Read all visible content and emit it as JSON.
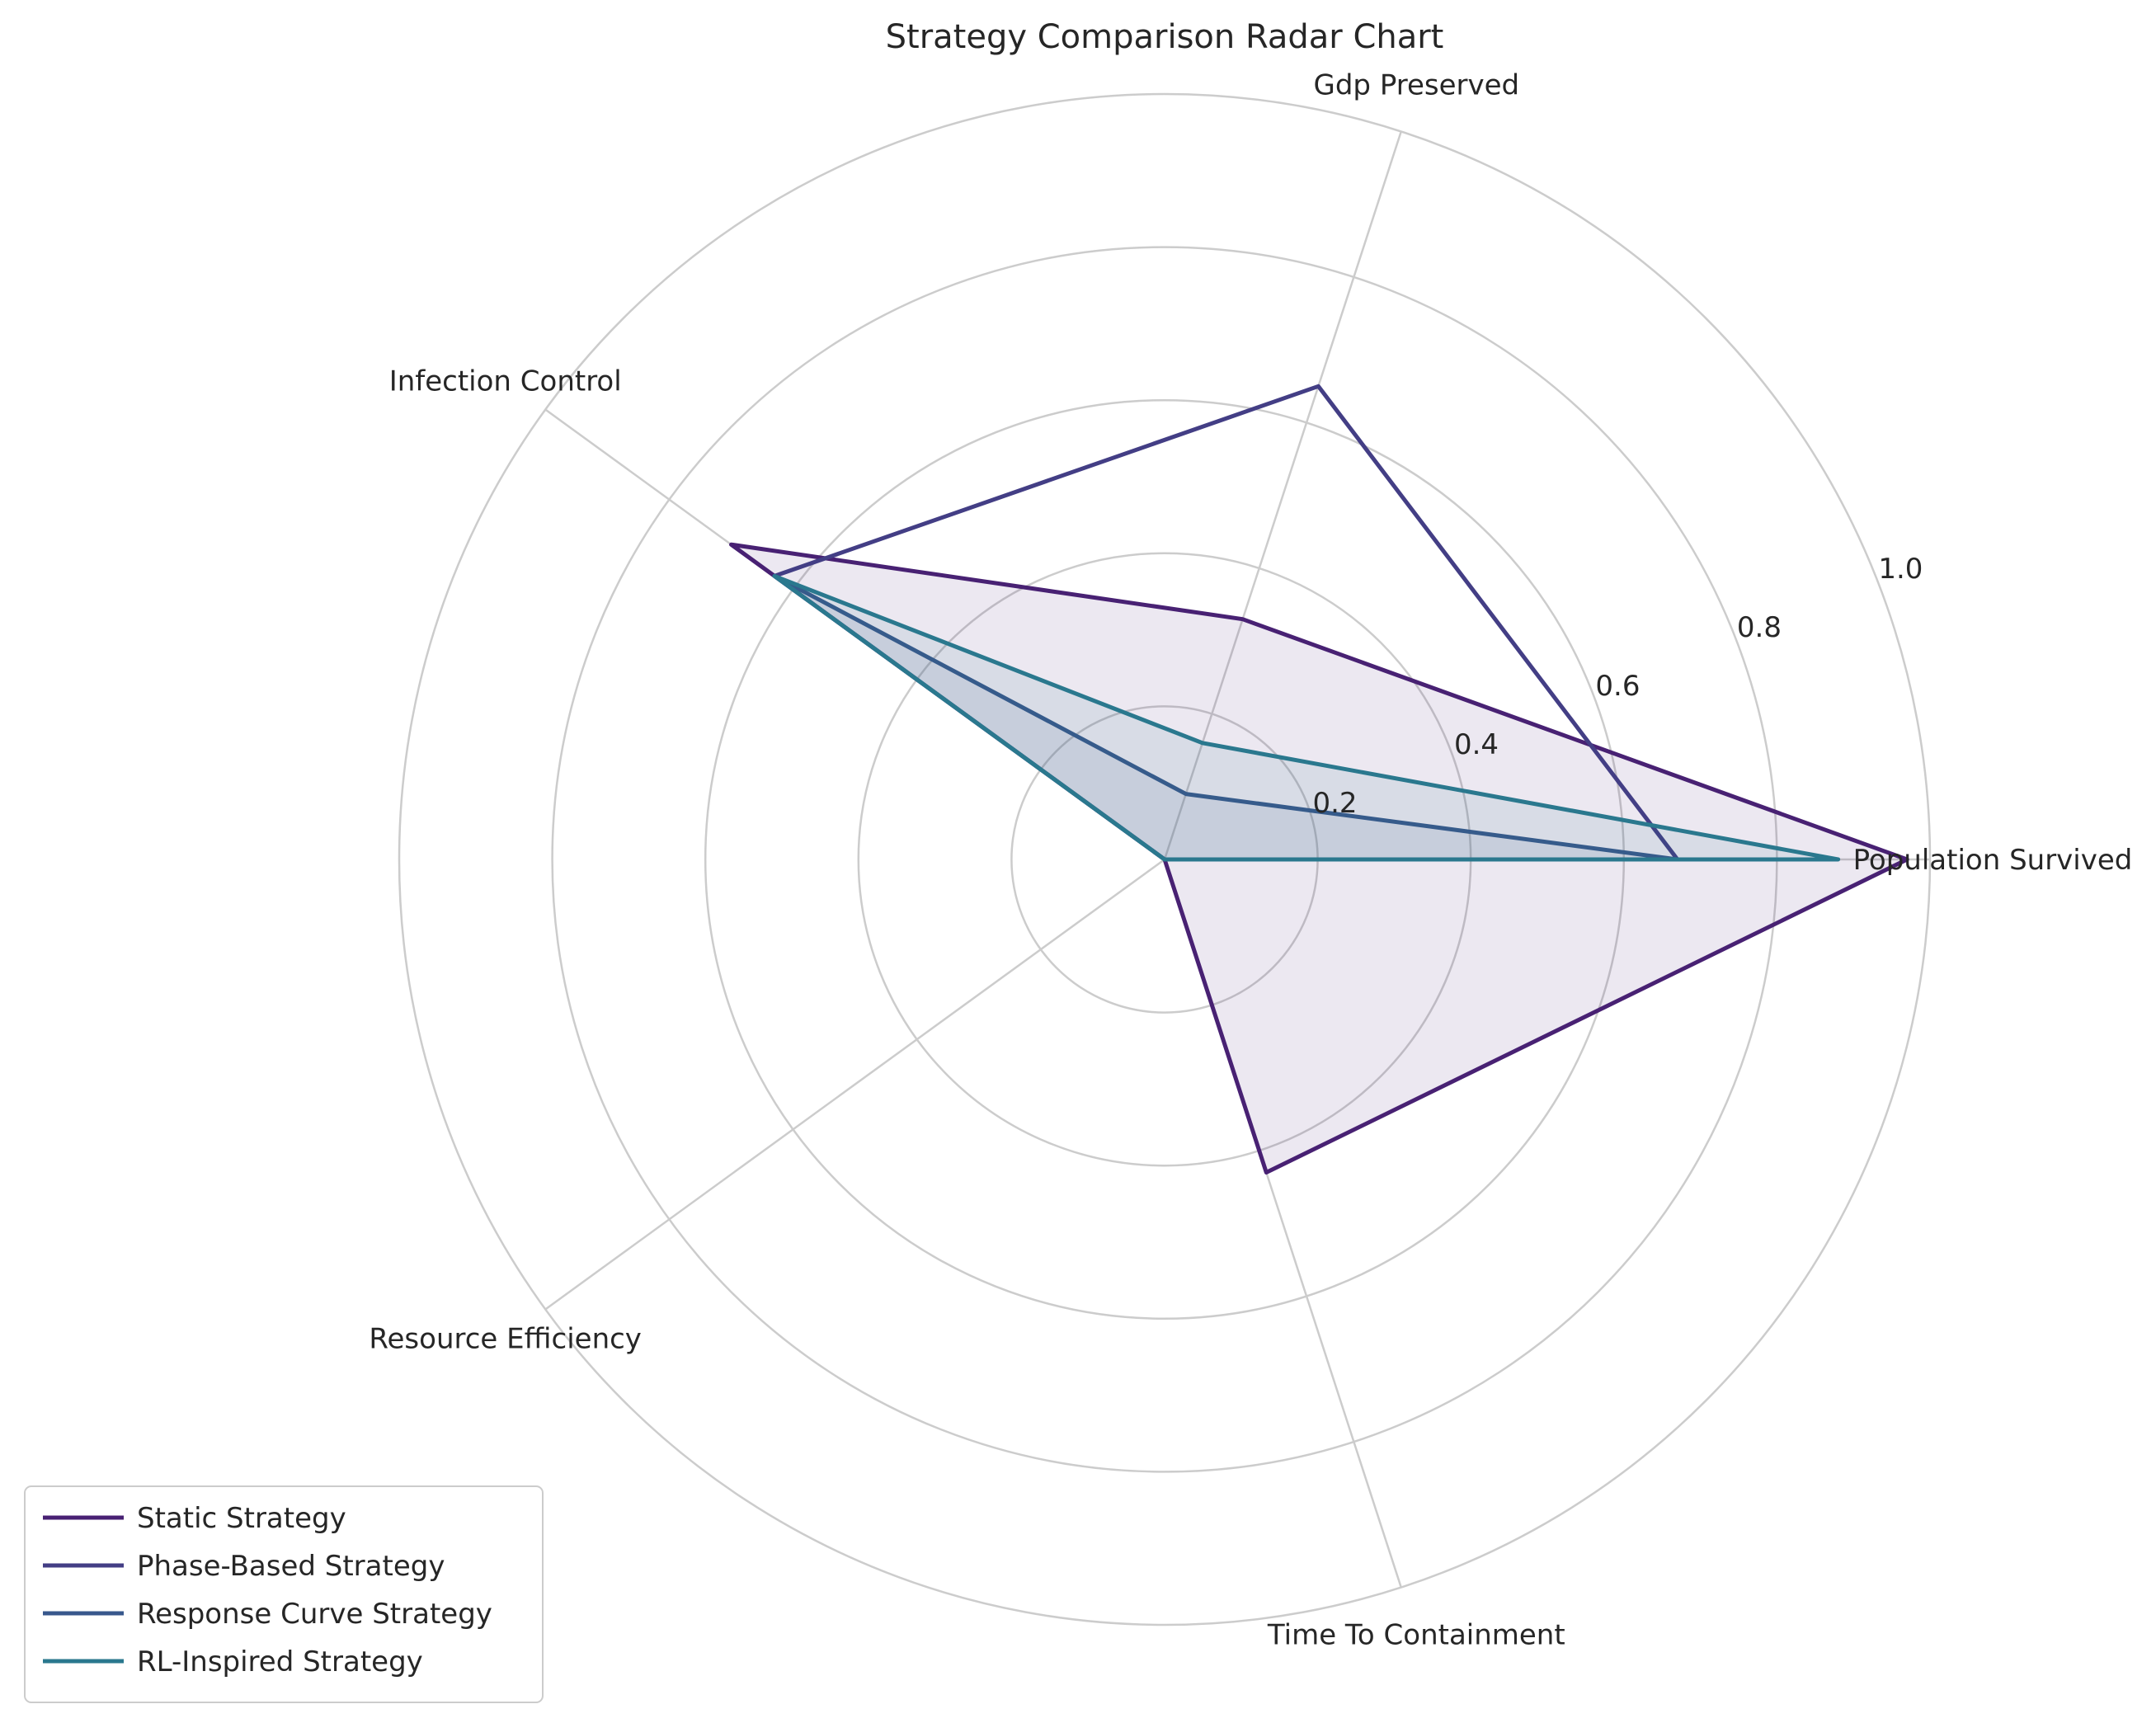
{
  "chart_data": {
    "type": "radar",
    "title": "Strategy Comparison Radar Chart",
    "axes": [
      "Population Survived",
      "Gdp Preserved",
      "Infection Control",
      "Resource Efficiency",
      "Time To Containment"
    ],
    "rlim": [
      0,
      1.0
    ],
    "rticks": [
      0.2,
      0.4,
      0.6,
      0.8,
      1.0
    ],
    "rtick_labels": [
      "0.2",
      "0.4",
      "0.6",
      "0.8",
      "1.0"
    ],
    "grid": true,
    "legend_position": "lower-left",
    "series": [
      {
        "name": "Static Strategy",
        "values": [
          0.97,
          0.33,
          0.7,
          0.0,
          0.43
        ],
        "color": "#482173",
        "filled": true
      },
      {
        "name": "Phase-Based Strategy",
        "values": [
          0.67,
          0.65,
          0.63,
          0.0,
          0.0
        ],
        "color": "#433E85",
        "filled": false
      },
      {
        "name": "Response Curve Strategy",
        "values": [
          0.67,
          0.09,
          0.63,
          0.0,
          0.0
        ],
        "color": "#38588C",
        "filled": true
      },
      {
        "name": "RL-Inspired Strategy",
        "values": [
          0.88,
          0.16,
          0.63,
          0.0,
          0.0
        ],
        "color": "#2A788E",
        "filled": true
      }
    ]
  }
}
